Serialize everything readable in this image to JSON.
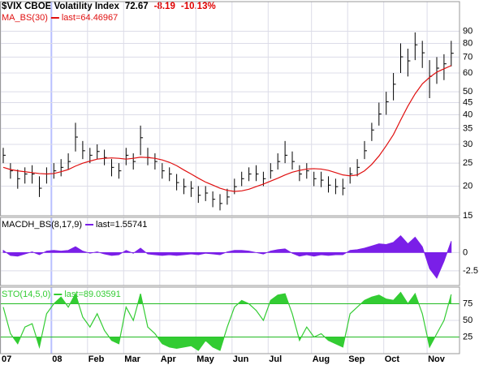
{
  "chart_data": [
    {
      "type": "ohlc",
      "title": "$VIX CBOE Volatility Index",
      "last_price": "72.67",
      "change": "-8.19",
      "change_percent": "-10.13%",
      "color": "#000000",
      "change_color": "#e00000",
      "log_scale": true,
      "grid": true,
      "categories": [
        "07",
        null,
        null,
        null,
        null,
        null,
        null,
        "08",
        null,
        null,
        null,
        null,
        "Feb",
        null,
        null,
        null,
        null,
        "Mar",
        null,
        null,
        null,
        null,
        "Apr",
        null,
        null,
        null,
        null,
        "May",
        null,
        null,
        null,
        null,
        "Jun",
        null,
        null,
        null,
        null,
        "Jul",
        null,
        null,
        null,
        null,
        null,
        "Aug",
        null,
        null,
        null,
        null,
        "Sep",
        null,
        null,
        null,
        null,
        "Oct",
        null,
        null,
        null,
        null,
        null,
        "Nov",
        null,
        null,
        null
      ],
      "high": [
        29,
        25,
        23.5,
        24,
        24.5,
        22,
        24,
        25,
        26,
        27.5,
        37,
        31,
        29,
        30,
        28.5,
        26,
        25,
        29,
        27.5,
        36,
        29,
        27.5,
        25,
        24,
        22.5,
        21.5,
        21,
        20,
        20,
        19,
        18.5,
        19.5,
        21.5,
        23,
        24,
        24.5,
        23,
        25,
        27.5,
        31,
        28,
        24.5,
        25,
        23,
        23,
        22,
        21.5,
        21.5,
        24,
        26,
        31,
        37,
        45,
        50,
        60,
        80,
        76,
        89,
        82,
        68,
        70,
        72,
        82
      ],
      "low": [
        25,
        21.5,
        19.5,
        20.5,
        20.5,
        18,
        20.5,
        21.5,
        22,
        23.5,
        28,
        26,
        25,
        26,
        24.5,
        22,
        21.5,
        24.5,
        23.5,
        27,
        24.5,
        23.5,
        21.5,
        21,
        19.2,
        18.5,
        18,
        17,
        17.3,
        16.3,
        15.8,
        16.7,
        18.5,
        20,
        21,
        21,
        20,
        21.5,
        23.5,
        25,
        23.5,
        21,
        21.5,
        20,
        19.8,
        18.8,
        18.5,
        18.3,
        20.5,
        22,
        26,
        31,
        36,
        40,
        46,
        60,
        58,
        68,
        63,
        47,
        54,
        56,
        64
      ],
      "close": [
        27,
        23.2,
        21.5,
        22.5,
        22.5,
        19.6,
        22.5,
        23.2,
        24,
        25.4,
        32.2,
        28.2,
        27,
        28,
        26.4,
        24,
        23.2,
        27,
        25.4,
        32,
        26.4,
        25.4,
        23.2,
        22.5,
        20.7,
        19.9,
        19.6,
        18.3,
        18.7,
        17.6,
        16.9,
        18,
        19.9,
        21.5,
        22.5,
        22.5,
        21.5,
        23.2,
        25.4,
        27,
        25.4,
        22.5,
        23.2,
        21.5,
        21.2,
        20.2,
        19.9,
        19.6,
        22.5,
        24,
        28.2,
        34.5,
        40.3,
        45.4,
        53.8,
        70.2,
        67.5,
        78.9,
        73,
        58.1,
        62.9,
        65.6,
        72.67
      ],
      "series": [
        {
          "name": "MA_BS(30)",
          "last_label": "last=64.46967",
          "color": "#e01010",
          "values": [
            24,
            23.5,
            23.2,
            23,
            22.8,
            22.6,
            22.5,
            22.6,
            23,
            23.5,
            24.3,
            25,
            25.5,
            26,
            26.2,
            26.3,
            26.2,
            26,
            26.2,
            26.5,
            26.4,
            26.2,
            25.8,
            25.2,
            24.4,
            23.4,
            22.5,
            21.6,
            20.8,
            20.2,
            19.6,
            19.2,
            19,
            19.1,
            19.4,
            19.9,
            20.4,
            21,
            21.6,
            22.3,
            22.9,
            23.3,
            23.6,
            23.7,
            23.6,
            23.3,
            22.8,
            22.3,
            22.1,
            22.3,
            23.2,
            24.7,
            26.8,
            29.6,
            33,
            38,
            43.5,
            49,
            54,
            57.5,
            60.5,
            62.5,
            64.47
          ]
        }
      ],
      "ylim": [
        15,
        120
      ],
      "yticks": [
        15,
        20,
        25,
        30,
        35,
        40,
        45,
        50,
        60,
        70,
        80,
        90
      ]
    },
    {
      "type": "area",
      "grid": true,
      "series": [
        {
          "name": "MACDH_BS(8,17,9)",
          "last_label": "last=1.55741",
          "color": "#7a1fe8",
          "values": [
            0.3,
            -0.4,
            -0.5,
            -0.2,
            0.1,
            -0.3,
            0.2,
            0.3,
            0.2,
            0.3,
            0.8,
            0.2,
            -0.1,
            0.1,
            -0.2,
            -0.4,
            -0.3,
            0.3,
            -0.1,
            0.6,
            -0.2,
            -0.3,
            -0.4,
            -0.3,
            -0.4,
            -0.3,
            -0.2,
            -0.3,
            -0.1,
            -0.2,
            -0.3,
            0.1,
            0.3,
            0.3,
            0.2,
            0,
            -0.2,
            0.2,
            0.4,
            0.5,
            -0.1,
            -0.5,
            -0.3,
            -0.5,
            -0.3,
            -0.4,
            -0.3,
            -0.3,
            0.3,
            0.4,
            0.6,
            0.9,
            1.2,
            1.1,
            1.4,
            2.3,
            1.2,
            2.1,
            0.8,
            -2.2,
            -3.5,
            -1.2,
            1.55741
          ]
        }
      ],
      "ylim": [
        -4.5,
        4.8
      ],
      "yticks": [
        -2.5,
        0
      ]
    },
    {
      "type": "line",
      "grid": true,
      "levels": [
        25,
        75
      ],
      "level_color": "#22bb22",
      "series": [
        {
          "name": "STO(14,5,0)",
          "last_label": "last=89.03591",
          "color": "#33cc33",
          "values": [
            70,
            30,
            15,
            40,
            45,
            10,
            60,
            75,
            85,
            70,
            90,
            55,
            40,
            60,
            35,
            20,
            15,
            70,
            50,
            90,
            40,
            30,
            15,
            10,
            8,
            10,
            12,
            5,
            20,
            10,
            5,
            40,
            70,
            80,
            75,
            65,
            50,
            80,
            88,
            90,
            60,
            20,
            40,
            25,
            30,
            20,
            15,
            10,
            60,
            70,
            80,
            85,
            88,
            82,
            80,
            92,
            75,
            90,
            60,
            10,
            30,
            50,
            89.03591
          ]
        }
      ],
      "ylim": [
        0,
        100
      ],
      "yticks": [
        25,
        50,
        75
      ]
    }
  ]
}
